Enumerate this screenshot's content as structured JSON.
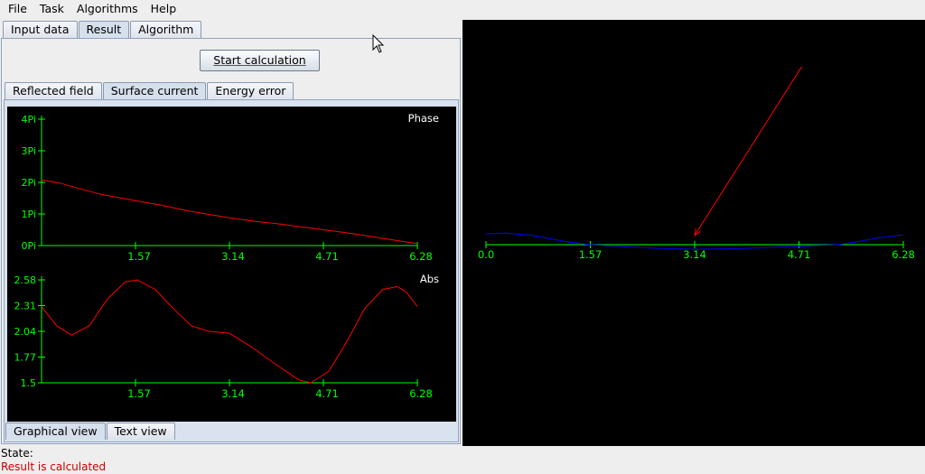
{
  "menu": [
    "File",
    "Task",
    "Algorithms",
    "Help"
  ],
  "top_tabs": [
    "Input data",
    "Result",
    "Algorithm"
  ],
  "start_button": "Start calculation",
  "inner_tabs": [
    "Reflected field",
    "Surface current",
    "Energy error"
  ],
  "bottom_tabs": [
    "Graphical view",
    "Text view"
  ],
  "status": {
    "label": "State:",
    "value": "Result is calculated"
  },
  "colors": {
    "axis": "#00ff00",
    "curve": "#ff0000",
    "boundary": "#0000ff",
    "label": "#ffffff"
  },
  "chart_data": [
    {
      "type": "line",
      "title": "Phase",
      "x_ticks": [
        "1.57",
        "3.14",
        "4.71",
        "6.28"
      ],
      "y_ticks": [
        "0Pi",
        "1Pi",
        "2Pi",
        "3Pi",
        "4Pi"
      ],
      "xlim": [
        0,
        6.28
      ],
      "ylim_pi": [
        0,
        4
      ],
      "x": [
        0,
        0.3,
        0.6,
        1.0,
        1.57,
        2.0,
        2.5,
        3.14,
        3.6,
        4.0,
        4.71,
        5.2,
        5.8,
        6.28
      ],
      "y_pi": [
        2.08,
        1.98,
        1.82,
        1.62,
        1.42,
        1.28,
        1.08,
        0.88,
        0.76,
        0.68,
        0.5,
        0.38,
        0.2,
        0.06
      ]
    },
    {
      "type": "line",
      "title": "Abs",
      "x_ticks": [
        "1.57",
        "3.14",
        "4.71",
        "6.28"
      ],
      "y_ticks": [
        "1.5",
        "1.77",
        "2.04",
        "2.31",
        "2.58"
      ],
      "xlim": [
        0,
        6.28
      ],
      "ylim": [
        1.5,
        2.58
      ],
      "x": [
        0,
        0.25,
        0.5,
        0.8,
        1.1,
        1.4,
        1.6,
        1.9,
        2.2,
        2.5,
        2.8,
        3.14,
        3.5,
        3.9,
        4.3,
        4.5,
        4.8,
        5.1,
        5.4,
        5.7,
        5.95,
        6.1,
        6.28
      ],
      "y": [
        2.3,
        2.1,
        2.0,
        2.1,
        2.38,
        2.56,
        2.58,
        2.48,
        2.28,
        2.1,
        2.04,
        2.02,
        1.88,
        1.7,
        1.53,
        1.5,
        1.62,
        1.93,
        2.28,
        2.48,
        2.51,
        2.45,
        2.3
      ]
    },
    {
      "type": "line",
      "title": "",
      "x_ticks": [
        "0.0",
        "1.57",
        "3.14",
        "4.71",
        "6.28"
      ],
      "xlim": [
        0,
        6.28
      ],
      "boundary_x": [
        0,
        0.3,
        0.7,
        1.2,
        1.57,
        2.0,
        2.6,
        3.14,
        3.8,
        4.4,
        4.9,
        5.3,
        5.6,
        5.9,
        6.28
      ],
      "boundary_y": [
        0.35,
        0.38,
        0.3,
        0.1,
        0.0,
        -0.05,
        -0.12,
        -0.15,
        -0.13,
        -0.08,
        -0.03,
        0.0,
        0.1,
        0.22,
        0.32
      ],
      "incident_from": [
        4.71,
        5.8
      ],
      "incident_to": [
        3.14,
        0.3
      ]
    }
  ]
}
